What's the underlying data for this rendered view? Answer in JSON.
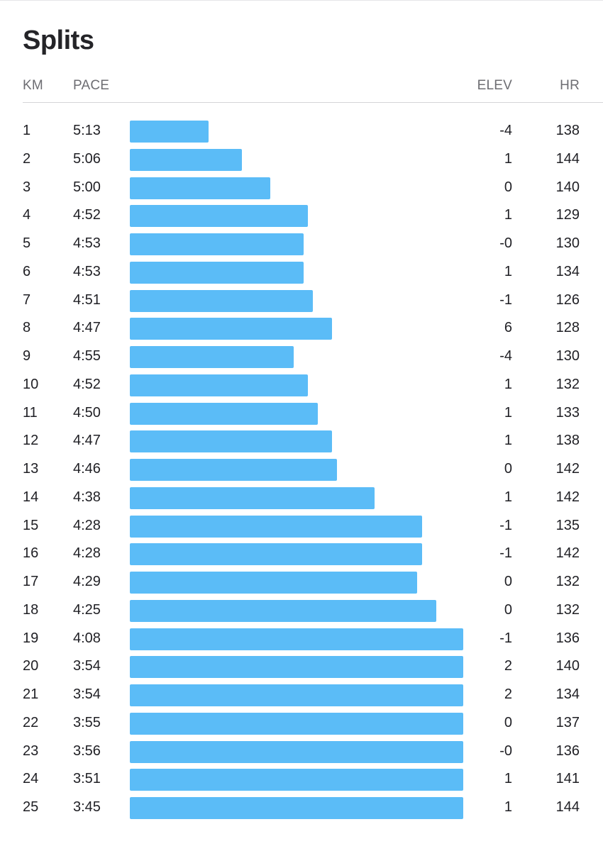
{
  "title": "Splits",
  "columns": {
    "km": "KM",
    "pace": "PACE",
    "elev": "ELEV",
    "hr": "HR"
  },
  "colors": {
    "bar": "#5bbcf7"
  },
  "splits": [
    {
      "km": "1",
      "pace": "5:13",
      "elev": "-4",
      "hr": "138"
    },
    {
      "km": "2",
      "pace": "5:06",
      "elev": "1",
      "hr": "144"
    },
    {
      "km": "3",
      "pace": "5:00",
      "elev": "0",
      "hr": "140"
    },
    {
      "km": "4",
      "pace": "4:52",
      "elev": "1",
      "hr": "129"
    },
    {
      "km": "5",
      "pace": "4:53",
      "elev": "-0",
      "hr": "130"
    },
    {
      "km": "6",
      "pace": "4:53",
      "elev": "1",
      "hr": "134"
    },
    {
      "km": "7",
      "pace": "4:51",
      "elev": "-1",
      "hr": "126"
    },
    {
      "km": "8",
      "pace": "4:47",
      "elev": "6",
      "hr": "128"
    },
    {
      "km": "9",
      "pace": "4:55",
      "elev": "-4",
      "hr": "130"
    },
    {
      "km": "10",
      "pace": "4:52",
      "elev": "1",
      "hr": "132"
    },
    {
      "km": "11",
      "pace": "4:50",
      "elev": "1",
      "hr": "133"
    },
    {
      "km": "12",
      "pace": "4:47",
      "elev": "1",
      "hr": "138"
    },
    {
      "km": "13",
      "pace": "4:46",
      "elev": "0",
      "hr": "142"
    },
    {
      "km": "14",
      "pace": "4:38",
      "elev": "1",
      "hr": "142"
    },
    {
      "km": "15",
      "pace": "4:28",
      "elev": "-1",
      "hr": "135"
    },
    {
      "km": "16",
      "pace": "4:28",
      "elev": "-1",
      "hr": "142"
    },
    {
      "km": "17",
      "pace": "4:29",
      "elev": "0",
      "hr": "132"
    },
    {
      "km": "18",
      "pace": "4:25",
      "elev": "0",
      "hr": "132"
    },
    {
      "km": "19",
      "pace": "4:08",
      "elev": "-1",
      "hr": "136"
    },
    {
      "km": "20",
      "pace": "3:54",
      "elev": "2",
      "hr": "140"
    },
    {
      "km": "21",
      "pace": "3:54",
      "elev": "2",
      "hr": "134"
    },
    {
      "km": "22",
      "pace": "3:55",
      "elev": "0",
      "hr": "137"
    },
    {
      "km": "23",
      "pace": "3:56",
      "elev": "-0",
      "hr": "136"
    },
    {
      "km": "24",
      "pace": "3:51",
      "elev": "1",
      "hr": "141"
    },
    {
      "km": "25",
      "pace": "3:45",
      "elev": "1",
      "hr": "144"
    }
  ]
}
